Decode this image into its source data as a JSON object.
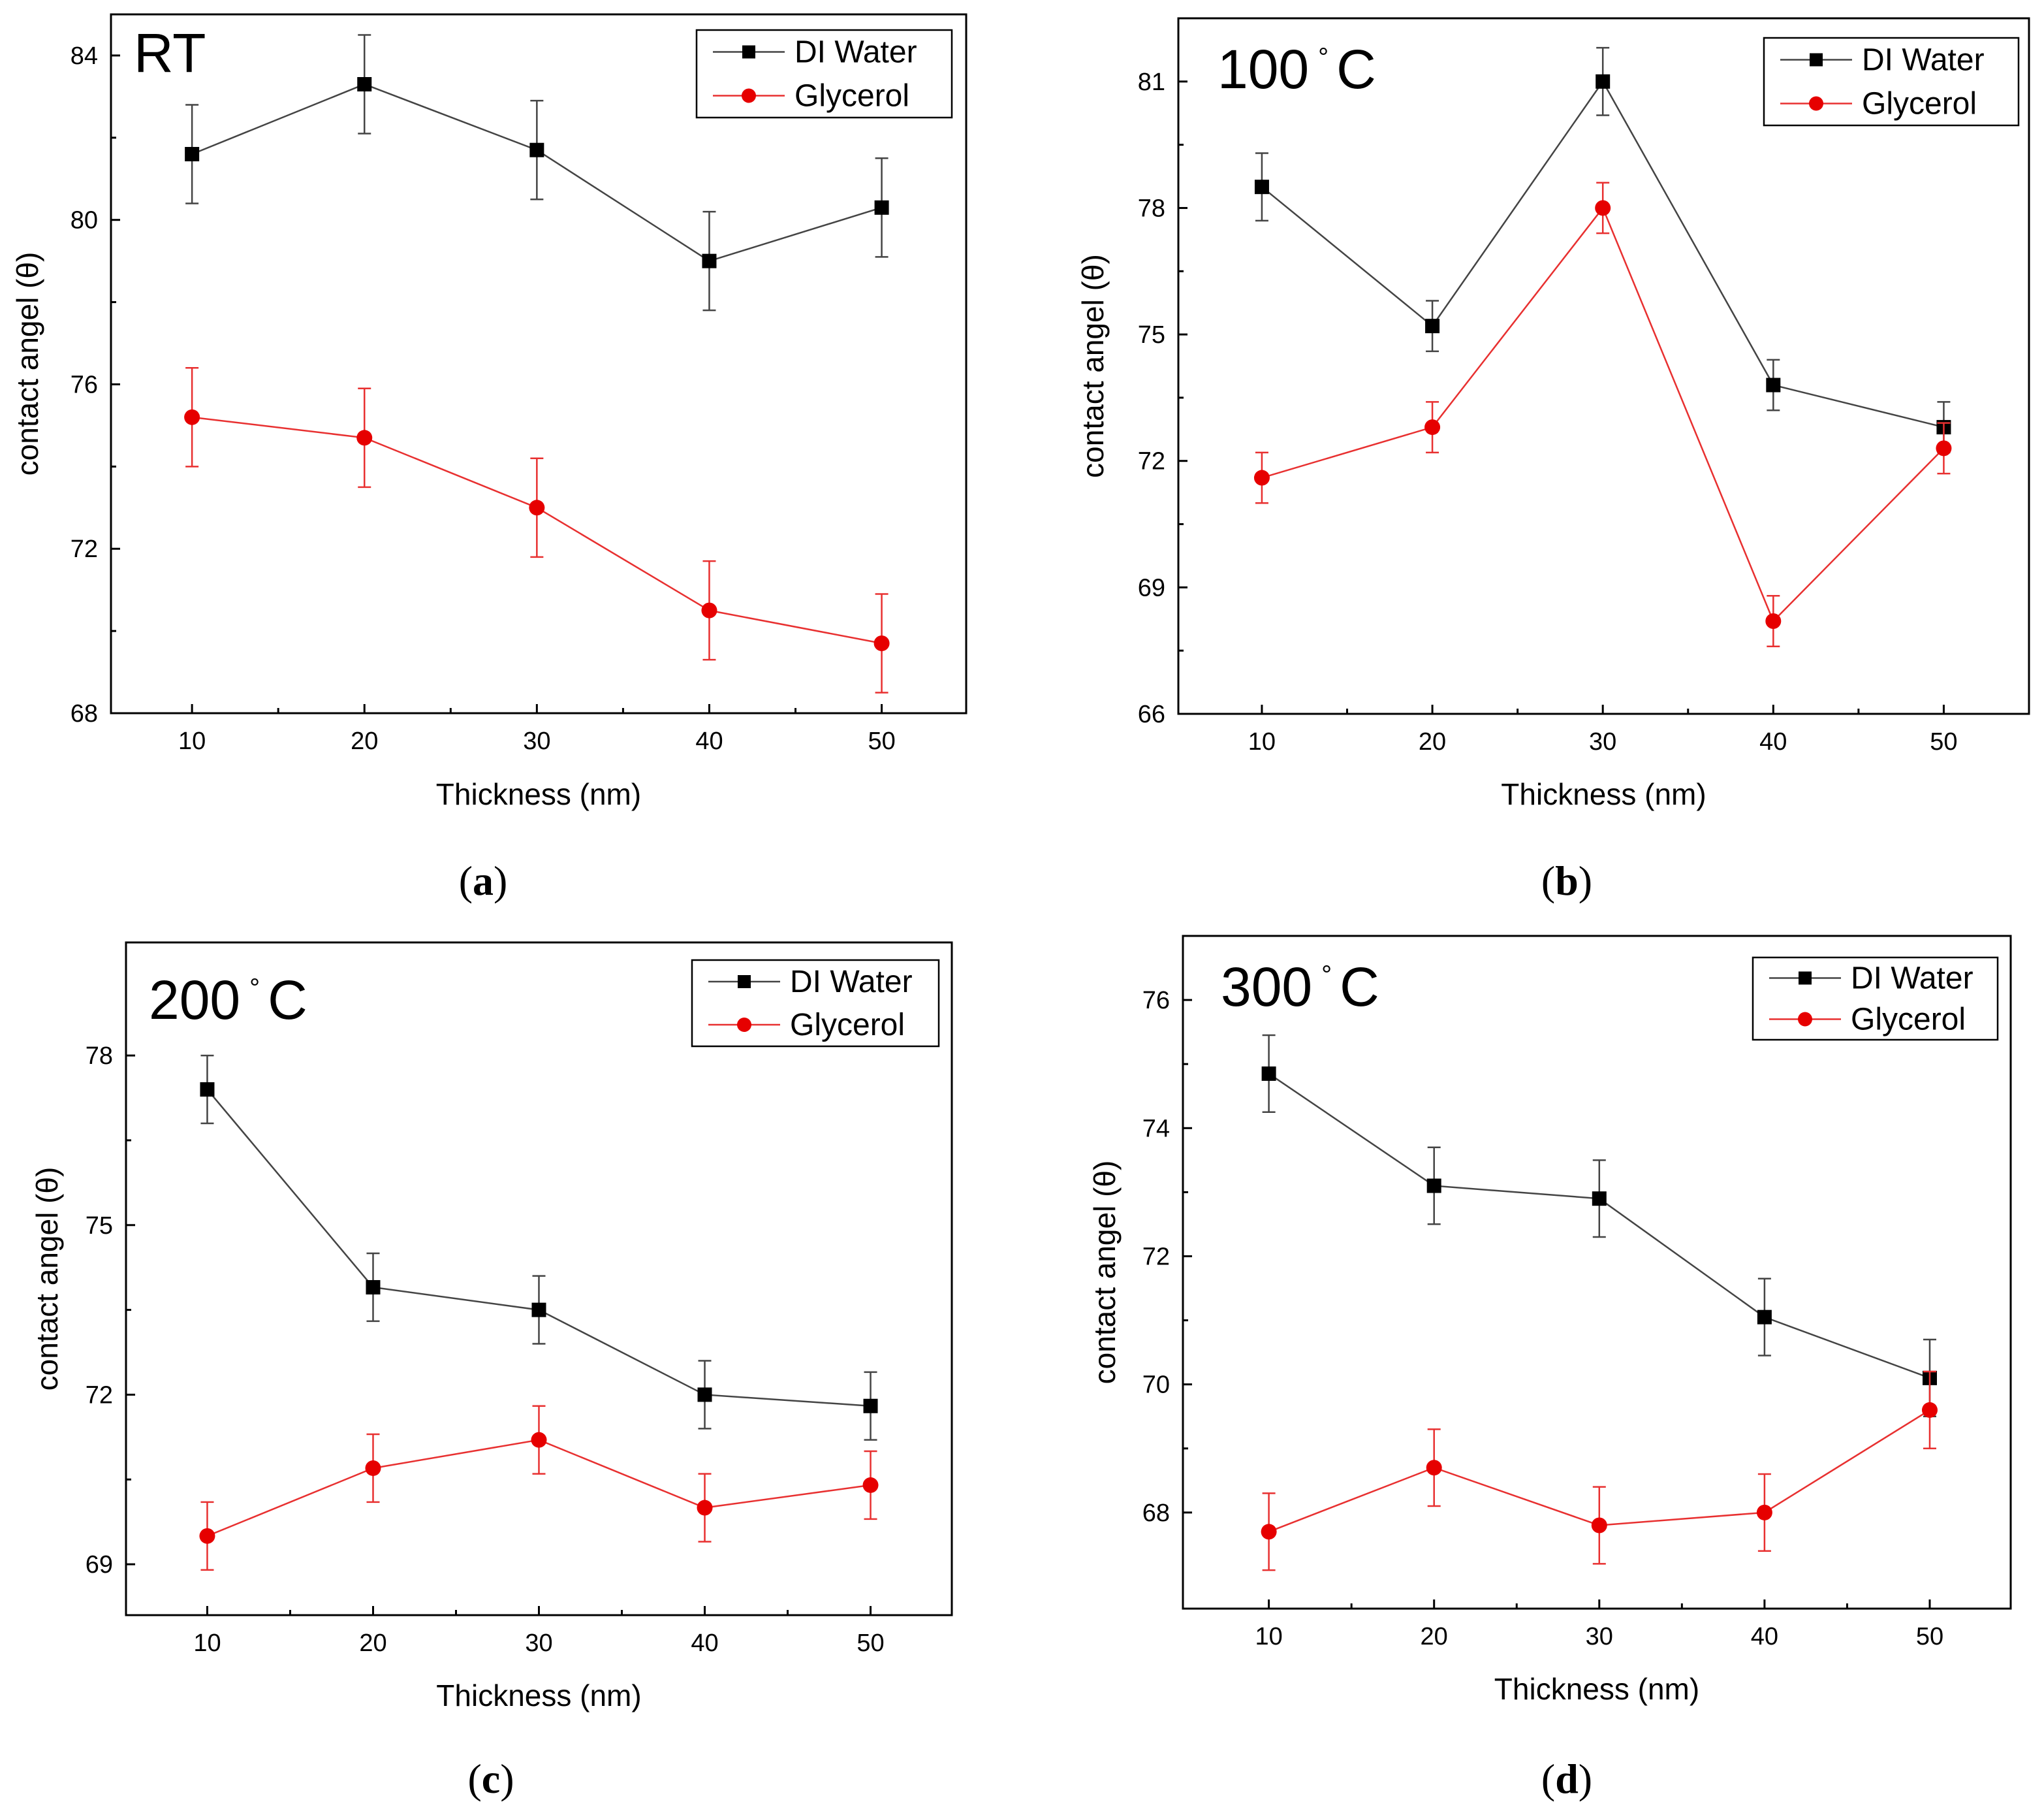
{
  "figure": {
    "captions": [
      "(a)",
      "(b)",
      "(c)",
      "(d)"
    ]
  },
  "colors": {
    "di_water": "#000000",
    "glycerol": "#e60000",
    "connector_black": "#444444",
    "connector_red": "#e83030"
  },
  "chart_data": [
    {
      "type": "line",
      "panel": "a",
      "title": "RT",
      "title_superscript": "",
      "xlabel": "Thickness (nm)",
      "ylabel": "contact angel (θ)",
      "x": [
        10,
        20,
        30,
        40,
        50
      ],
      "xlim": [
        5.3,
        54.9
      ],
      "ylim": [
        68,
        85
      ],
      "yticks": [
        68,
        72,
        76,
        80,
        84
      ],
      "xticks": [
        10,
        20,
        30,
        40,
        50
      ],
      "legend": [
        "DI Water",
        "Glycerol"
      ],
      "series": [
        {
          "name": "DI Water",
          "marker": "square",
          "values": [
            81.6,
            83.3,
            81.7,
            79.0,
            80.3
          ],
          "errors": [
            1.2,
            1.2,
            1.2,
            1.2,
            1.2
          ]
        },
        {
          "name": "Glycerol",
          "marker": "circle",
          "values": [
            75.2,
            74.7,
            73.0,
            70.5,
            69.7
          ],
          "errors": [
            1.2,
            1.2,
            1.2,
            1.2,
            1.2
          ]
        }
      ]
    },
    {
      "type": "line",
      "panel": "b",
      "title": "100",
      "title_superscript": "°",
      "title_suffix": "C",
      "xlabel": "Thickness (nm)",
      "ylabel": "contact angel (θ)",
      "x": [
        10,
        20,
        30,
        40,
        50
      ],
      "xlim": [
        5.1,
        55.0
      ],
      "ylim": [
        66,
        82.5
      ],
      "yticks": [
        66,
        69,
        72,
        75,
        78,
        81
      ],
      "xticks": [
        10,
        20,
        30,
        40,
        50
      ],
      "legend": [
        "DI Water",
        "Glycerol"
      ],
      "series": [
        {
          "name": "DI Water",
          "marker": "square",
          "values": [
            78.5,
            75.2,
            81.0,
            73.8,
            72.8
          ],
          "errors": [
            0.8,
            0.6,
            0.8,
            0.6,
            0.6
          ]
        },
        {
          "name": "Glycerol",
          "marker": "circle",
          "values": [
            71.6,
            72.8,
            78.0,
            68.2,
            72.3
          ],
          "errors": [
            0.6,
            0.6,
            0.6,
            0.6,
            0.6
          ]
        }
      ]
    },
    {
      "type": "line",
      "panel": "c",
      "title": "200",
      "title_superscript": "°",
      "title_suffix": "C",
      "xlabel": "Thickness (nm)",
      "ylabel": "contact angel (θ)",
      "x": [
        10,
        20,
        30,
        40,
        50
      ],
      "xlim": [
        5.1,
        54.9
      ],
      "ylim": [
        68.1,
        80.0
      ],
      "yticks": [
        69,
        72,
        75,
        78
      ],
      "xticks": [
        10,
        20,
        30,
        40,
        50
      ],
      "legend": [
        "DI Water",
        "Glycerol"
      ],
      "series": [
        {
          "name": "DI Water",
          "marker": "square",
          "values": [
            77.4,
            73.9,
            73.5,
            72.0,
            71.8
          ],
          "errors": [
            0.6,
            0.6,
            0.6,
            0.6,
            0.6
          ]
        },
        {
          "name": "Glycerol",
          "marker": "circle",
          "values": [
            69.5,
            70.7,
            71.2,
            70.0,
            70.4
          ],
          "errors": [
            0.6,
            0.6,
            0.6,
            0.6,
            0.6
          ]
        }
      ]
    },
    {
      "type": "line",
      "panel": "d",
      "title": "300",
      "title_superscript": "°",
      "title_suffix": "C",
      "xlabel": "Thickness (nm)",
      "ylabel": "contact angel (θ)",
      "x": [
        10,
        20,
        30,
        40,
        50
      ],
      "xlim": [
        4.8,
        54.9
      ],
      "ylim": [
        66.5,
        77.0
      ],
      "yticks": [
        68,
        70,
        72,
        74,
        76
      ],
      "xticks": [
        10,
        20,
        30,
        40,
        50
      ],
      "legend": [
        "DI Water",
        "Glycerol"
      ],
      "series": [
        {
          "name": "DI Water",
          "marker": "square",
          "values": [
            74.85,
            73.1,
            72.9,
            71.05,
            70.1
          ],
          "errors": [
            0.6,
            0.6,
            0.6,
            0.6,
            0.6
          ]
        },
        {
          "name": "Glycerol",
          "marker": "circle",
          "values": [
            67.7,
            68.7,
            67.8,
            68.0,
            69.6
          ],
          "errors": [
            0.6,
            0.6,
            0.6,
            0.6,
            0.6
          ]
        }
      ]
    }
  ]
}
